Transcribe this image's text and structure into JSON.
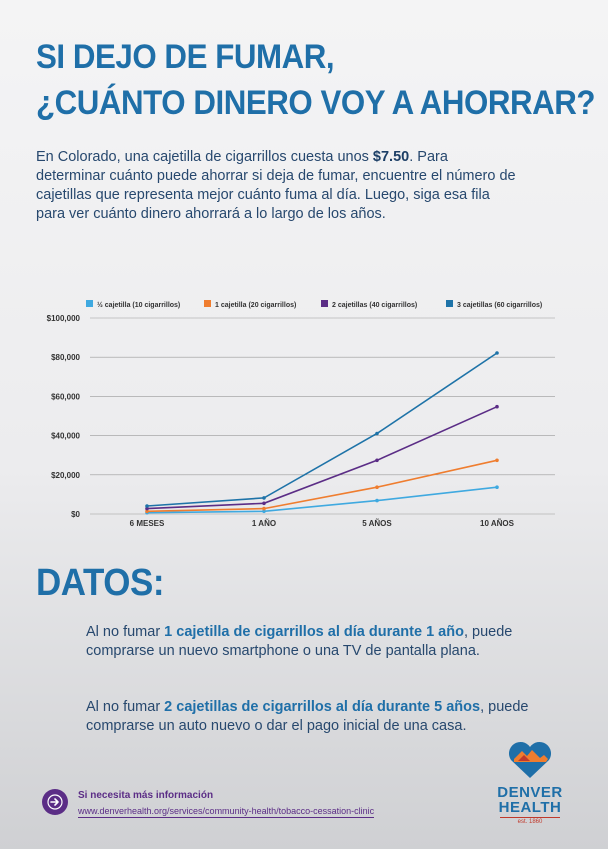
{
  "header": {
    "title_line1": "SI DEJO DE FUMAR,",
    "title_line2": "¿CUÁNTO DINERO VOY A AHORRAR?"
  },
  "intro": {
    "before_price": "En Colorado, una cajetilla de cigarrillos cuesta unos ",
    "price": "$7.50",
    "after_price": ". Para determinar cuánto puede ahorrar si deja de fumar, encuentre el número de cajetillas que representa mejor cuánto fuma al día. Luego, siga esa fila para ver cuánto dinero ahorrará a lo largo de los años."
  },
  "chart_data": {
    "type": "line",
    "categories": [
      "6 MESES",
      "1 AÑO",
      "5 AÑOS",
      "10 AÑOS"
    ],
    "ylim": [
      0,
      100000
    ],
    "yticks": [
      0,
      20000,
      40000,
      60000,
      80000,
      100000
    ],
    "ytick_labels": [
      "$0",
      "$20,000",
      "$40,000",
      "$60,000",
      "$80,000",
      "$100,000"
    ],
    "grid": true,
    "legend_position": "top",
    "series": [
      {
        "name": "½ cajetilla (10 cigarrillos)",
        "color": "#3fa9e0",
        "values": [
          684,
          1369,
          6844,
          13688
        ]
      },
      {
        "name": "1 cajetilla (20 cigarrillos)",
        "color": "#ef7d2f",
        "values": [
          1369,
          2738,
          13688,
          27375
        ]
      },
      {
        "name": "2 cajetillas (40 cigarrillos)",
        "color": "#5b2d86",
        "values": [
          2738,
          5475,
          27375,
          54750
        ]
      },
      {
        "name": "3 cajetillas (60 cigarrillos)",
        "color": "#1e73a8",
        "values": [
          4106,
          8213,
          41063,
          82125
        ]
      }
    ]
  },
  "datos": {
    "heading": "DATOS:",
    "fact1_pre": "Al no fumar ",
    "fact1_bold": "1 cajetilla de cigarrillos al día durante 1 año",
    "fact1_post": ", puede comprarse un nuevo smartphone o una TV de pantalla plana.",
    "fact2_pre": "Al no fumar ",
    "fact2_bold": "2 cajetillas de cigarrillos al día durante 5 años",
    "fact2_post": ", puede comprarse un auto nuevo o dar el pago inicial de una casa."
  },
  "footer": {
    "info_title": "Si necesita más información",
    "info_link": "www.denverhealth.org/services/community-health/tobacco-cessation-clinic",
    "logo_line1": "DENVER",
    "logo_line2": "HEALTH",
    "logo_est": "est. 1860",
    "arrow_icon": "arrow-right-icon",
    "logo_icon": "heart-mountain-icon"
  }
}
